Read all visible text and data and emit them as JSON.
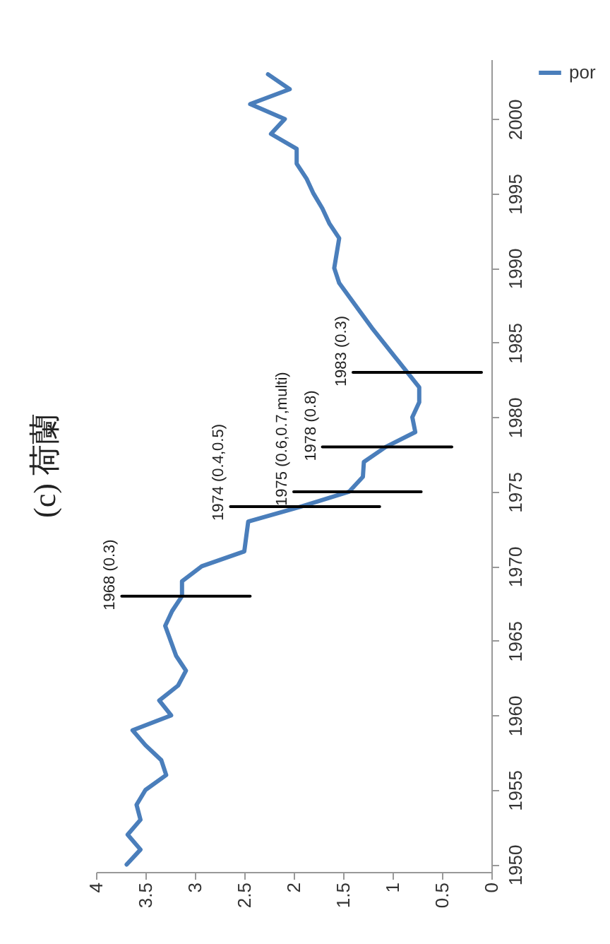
{
  "chart_data": {
    "type": "line",
    "title": "(c) 荷蘭",
    "xlim": [
      4,
      0
    ],
    "xticks": [
      4,
      3.5,
      3,
      2.5,
      2,
      1.5,
      1,
      0.5,
      0
    ],
    "ylim": [
      1949.5,
      2004
    ],
    "yticks": [
      1950,
      1955,
      1960,
      1965,
      1970,
      1975,
      1980,
      1985,
      1990,
      1995,
      2000
    ],
    "legend": "right",
    "series": [
      {
        "name": "por",
        "color": "#4a7ebb",
        "x": [
          3.69,
          3.55,
          3.68,
          3.55,
          3.59,
          3.5,
          3.29,
          3.34,
          3.5,
          3.63,
          3.24,
          3.36,
          3.17,
          3.09,
          3.19,
          3.3,
          3.23,
          3.13,
          3.13,
          2.93,
          2.5,
          2.46,
          1.93,
          1.44,
          1.3,
          1.29,
          1.07,
          0.77,
          0.8,
          0.73,
          0.73,
          0.97,
          1.21,
          1.54,
          1.59,
          1.54,
          1.64,
          1.71,
          1.8,
          1.87,
          1.97,
          1.97,
          2.23,
          2.09,
          2.44,
          2.04,
          2.26
        ],
        "values": [
          1950,
          1951,
          1952,
          1953,
          1954,
          1955,
          1956,
          1957,
          1958,
          1959,
          1960,
          1961,
          1962,
          1963,
          1964,
          1966,
          1967,
          1968,
          1969,
          1970,
          1971,
          1973,
          1974,
          1975,
          1976,
          1977,
          1978,
          1979,
          1980,
          1981,
          1982,
          1984,
          1986,
          1989,
          1990,
          1992,
          1993,
          1994,
          1995,
          1996,
          1997,
          1998,
          1999,
          2000,
          2001,
          2002,
          2003
        ]
      },
      {
        "color": "#000000",
        "x": [
          3.74,
          2.44
        ],
        "values": [
          1968,
          1968
        ]
      },
      {
        "color": "#000000",
        "x": [
          2.64,
          1.13
        ],
        "values": [
          1974,
          1974
        ]
      },
      {
        "color": "#000000",
        "x": [
          2.0,
          0.71
        ],
        "values": [
          1975,
          1975
        ]
      },
      {
        "color": "#000000",
        "x": [
          1.71,
          0.4
        ],
        "values": [
          1978,
          1978
        ]
      },
      {
        "color": "#000000",
        "x": [
          1.4,
          0.1
        ],
        "values": [
          1983,
          1983
        ]
      }
    ],
    "annotations": [
      {
        "text": "1968 (0.3)",
        "x": 3.74,
        "y": 1968
      },
      {
        "text": "1974 (0.4,0.5)",
        "x": 2.64,
        "y": 1974
      },
      {
        "text": "1975 (0.6,0.7,multi)",
        "x": 2.0,
        "y": 1975
      },
      {
        "text": "1978 (0.8)",
        "x": 1.71,
        "y": 1978
      },
      {
        "text": "1983 (0.3)",
        "x": 1.4,
        "y": 1983
      }
    ]
  }
}
